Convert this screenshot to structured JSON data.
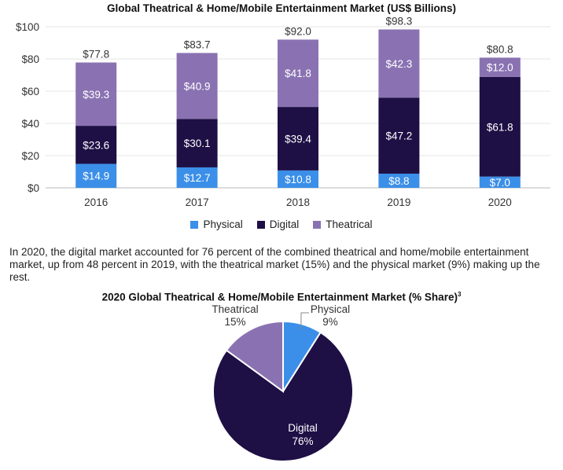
{
  "bar_title": "Global Theatrical & Home/Mobile Entertainment Market (US$ Billions)",
  "legend": [
    {
      "label": "Physical",
      "color": "#3b8fe8"
    },
    {
      "label": "Digital",
      "color": "#1e0f45"
    },
    {
      "label": "Theatrical",
      "color": "#8a72b2"
    }
  ],
  "paragraph": "In 2020, the digital market accounted for 76 percent of the combined theatrical and home/mobile entertainment market, up from 48 percent in 2019, with the theatrical market (15%) and the physical market (9%) making up the rest.",
  "pie_title": "2020 Global Theatrical & Home/Mobile Entertainment Market (% Share)",
  "pie_title_sup": "3",
  "chart_data": [
    {
      "type": "bar",
      "stacked": true,
      "title": "Global Theatrical & Home/Mobile Entertainment Market (US$ Billions)",
      "categories": [
        "2016",
        "2017",
        "2018",
        "2019",
        "2020"
      ],
      "series": [
        {
          "name": "Physical",
          "values": [
            14.9,
            12.7,
            10.8,
            8.8,
            7.0
          ],
          "labels": [
            "$14.9",
            "$12.7",
            "$10.8",
            "$8.8",
            "$7.0"
          ],
          "color": "#3b8fe8"
        },
        {
          "name": "Digital",
          "values": [
            23.6,
            30.1,
            39.4,
            47.2,
            61.8
          ],
          "labels": [
            "$23.6",
            "$30.1",
            "$39.4",
            "$47.2",
            "$61.8"
          ],
          "color": "#1e0f45"
        },
        {
          "name": "Theatrical",
          "values": [
            39.3,
            40.9,
            41.8,
            42.3,
            12.0
          ],
          "labels": [
            "$39.3",
            "$40.9",
            "$41.8",
            "$42.3",
            "$12.0"
          ],
          "color": "#8a72b2"
        }
      ],
      "totals": [
        77.8,
        83.7,
        92.0,
        98.3,
        80.8
      ],
      "total_labels": [
        "$77.8",
        "$83.7",
        "$92.0",
        "$98.3",
        "$80.8"
      ],
      "ylim": [
        0,
        100
      ],
      "yticks": [
        0,
        20,
        40,
        60,
        80,
        100
      ],
      "ytick_labels": [
        "$0",
        "$20",
        "$40",
        "$60",
        "$80",
        "$100"
      ],
      "legend_position": "bottom"
    },
    {
      "type": "pie",
      "title": "2020 Global Theatrical & Home/Mobile Entertainment Market (% Share)",
      "slices": [
        {
          "name": "Physical",
          "value": 9,
          "label": "9%",
          "color": "#3b8fe8"
        },
        {
          "name": "Digital",
          "value": 76,
          "label": "76%",
          "color": "#1e0f45"
        },
        {
          "name": "Theatrical",
          "value": 15,
          "label": "15%",
          "color": "#8a72b2"
        }
      ]
    }
  ]
}
